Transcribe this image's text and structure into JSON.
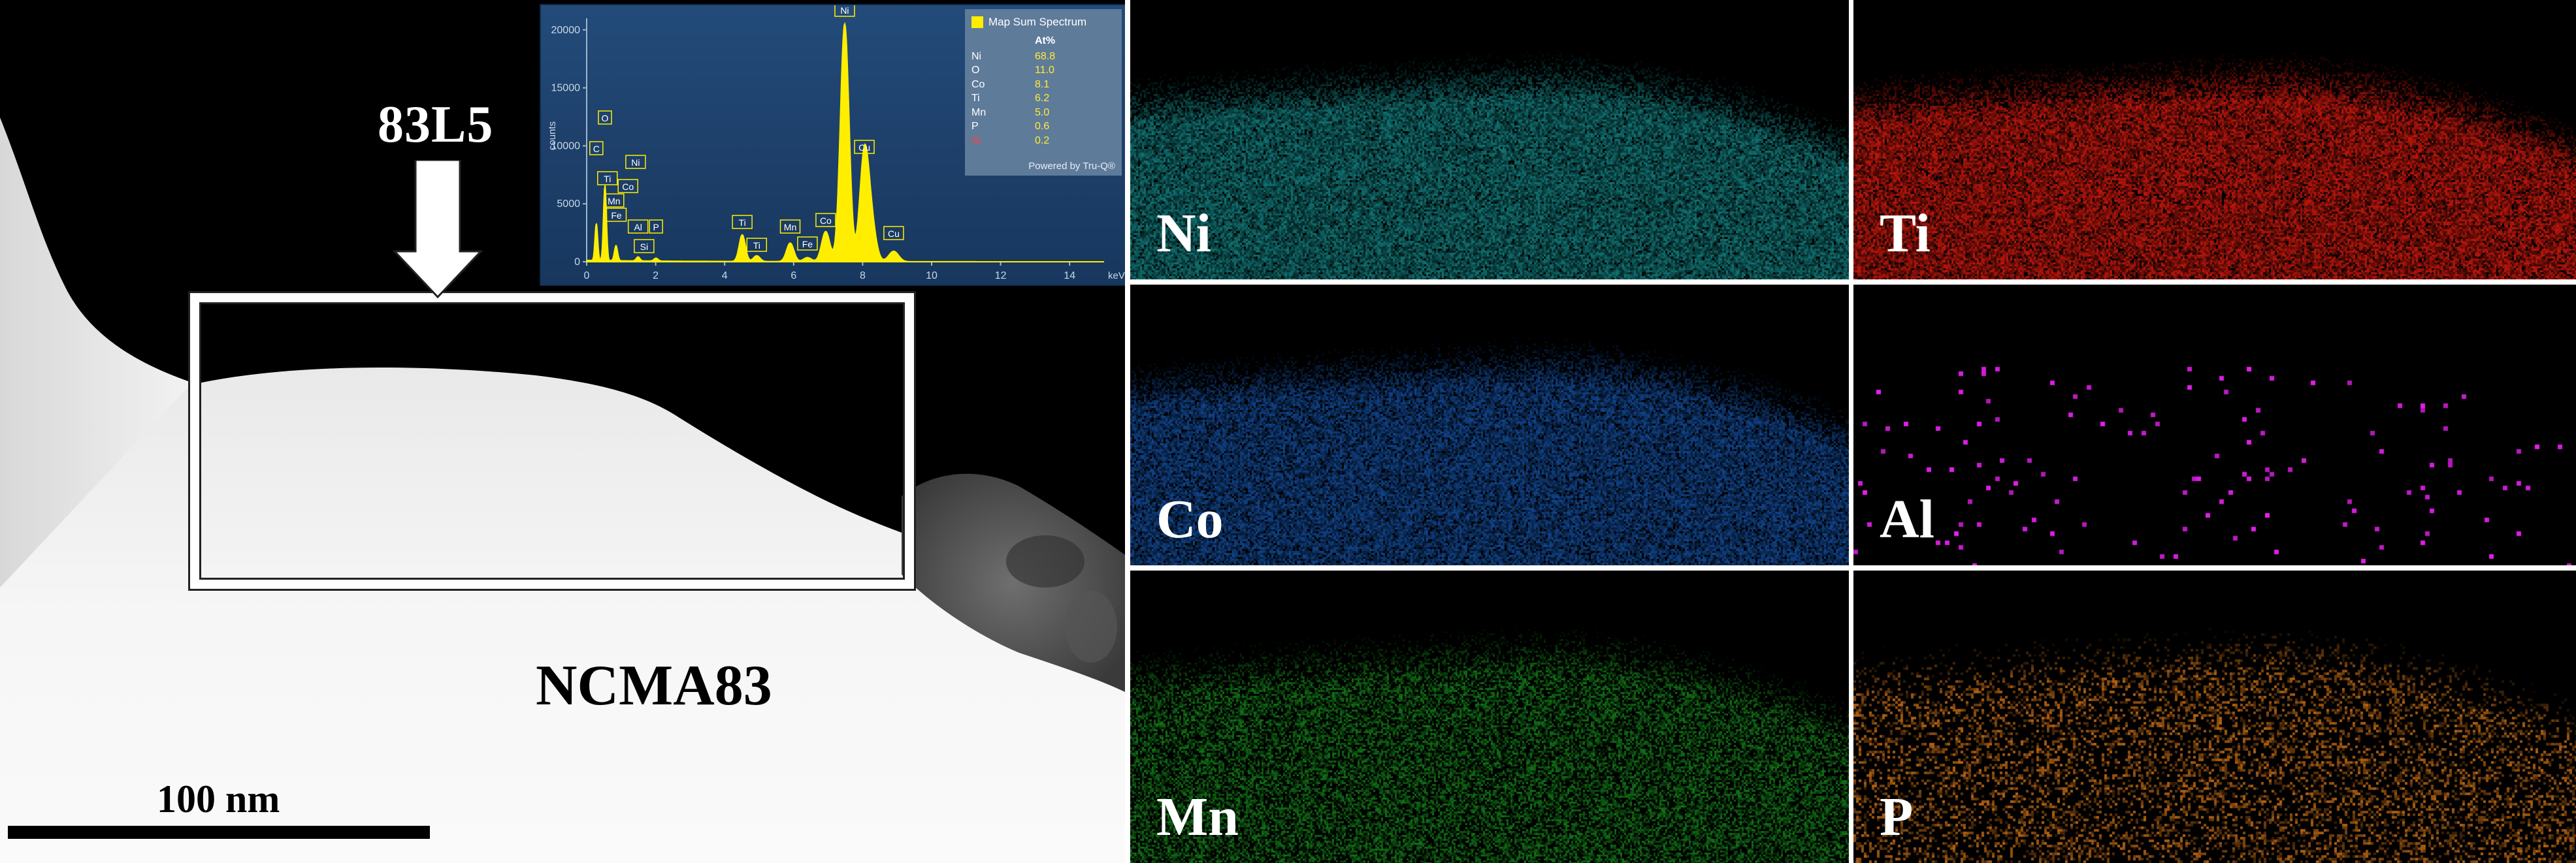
{
  "tem_panel": {
    "sample_label": "NCMA83",
    "scale_label": "100 nm",
    "roi_label": "83L5"
  },
  "spectrum": {
    "legend_title": "Map Sum Spectrum",
    "legend_header": "At%",
    "composition": [
      {
        "element": "Ni",
        "value": "68.8"
      },
      {
        "element": "O",
        "value": "11.0"
      },
      {
        "element": "Co",
        "value": "8.1"
      },
      {
        "element": "Ti",
        "value": "6.2"
      },
      {
        "element": "Mn",
        "value": "5.0"
      },
      {
        "element": "P",
        "value": "0.6"
      },
      {
        "element": "Al",
        "value": "0.2"
      }
    ],
    "powered_by": "Powered by Tru-Q®",
    "y_axis_label": "counts",
    "x_unit": "keV",
    "y_ticks": [
      "0",
      "5000",
      "10000",
      "15000",
      "20000"
    ],
    "x_ticks": [
      "0",
      "2",
      "4",
      "6",
      "8",
      "10",
      "12",
      "14"
    ],
    "peak_labels": [
      {
        "text": "O",
        "kev": 0.53
      },
      {
        "text": "C",
        "kev": 0.28
      },
      {
        "text": "Ni",
        "kev": 0.85
      },
      {
        "text": "Ti",
        "kev": 0.45
      },
      {
        "text": "Co",
        "kev": 0.78
      },
      {
        "text": "Mn",
        "kev": 0.64
      },
      {
        "text": "Fe",
        "kev": 0.71
      },
      {
        "text": "Al",
        "kev": 1.49
      },
      {
        "text": "P",
        "kev": 2.01
      },
      {
        "text": "Si",
        "kev": 1.74
      },
      {
        "text": "Ti",
        "kev": 4.51
      },
      {
        "text": "Ti",
        "kev": 4.93
      },
      {
        "text": "Mn",
        "kev": 5.9
      },
      {
        "text": "Fe",
        "kev": 6.4
      },
      {
        "text": "Co",
        "kev": 6.93
      },
      {
        "text": "Ni",
        "kev": 7.48
      },
      {
        "text": "Cu",
        "kev": 8.05
      },
      {
        "text": "Cu",
        "kev": 8.9
      }
    ],
    "peaks": [
      {
        "kev": 0.28,
        "counts": 3200
      },
      {
        "kev": 0.53,
        "counts": 6500
      },
      {
        "kev": 0.85,
        "counts": 1300
      },
      {
        "kev": 1.49,
        "counts": 350
      },
      {
        "kev": 2.01,
        "counts": 250
      },
      {
        "kev": 4.51,
        "counts": 2300
      },
      {
        "kev": 4.93,
        "counts": 500
      },
      {
        "kev": 5.9,
        "counts": 1600
      },
      {
        "kev": 6.4,
        "counts": 350
      },
      {
        "kev": 6.93,
        "counts": 2600
      },
      {
        "kev": 7.48,
        "counts": 20500
      },
      {
        "kev": 8.05,
        "counts": 9200
      },
      {
        "kev": 8.26,
        "counts": 2800
      },
      {
        "kev": 8.9,
        "counts": 900
      }
    ],
    "x_range": [
      0,
      15
    ],
    "y_range": [
      0,
      21000
    ]
  },
  "maps": [
    {
      "label": "Ni",
      "color": "#1fd2d4"
    },
    {
      "label": "Ti",
      "color": "#ff1e10"
    },
    {
      "label": "Co",
      "color": "#1f7dff"
    },
    {
      "label": "Al",
      "color": "#e81ff0"
    },
    {
      "label": "Mn",
      "color": "#20d42a"
    },
    {
      "label": "P",
      "color": "#ff8c1a"
    }
  ]
}
